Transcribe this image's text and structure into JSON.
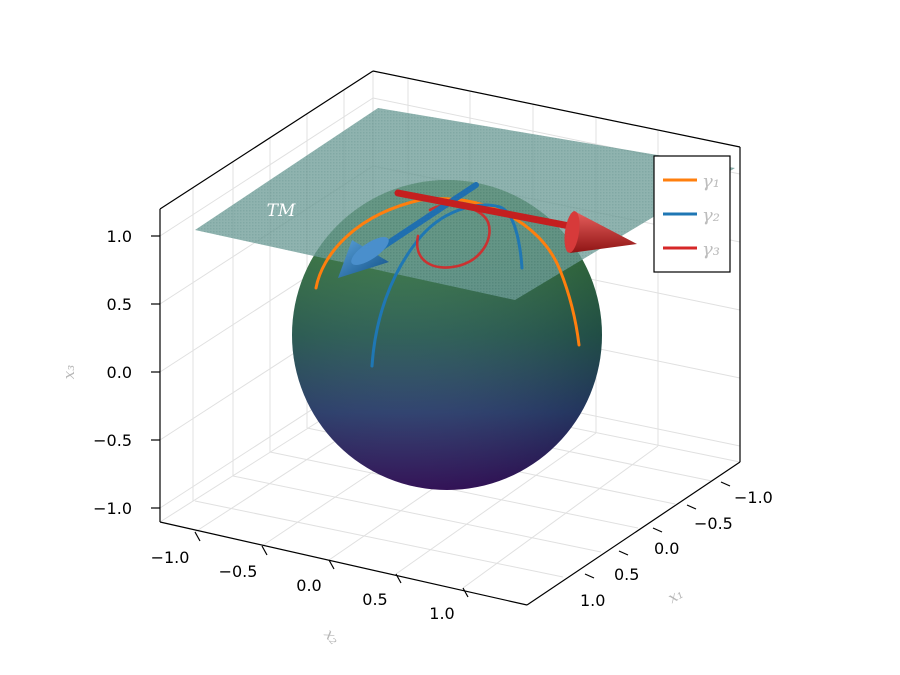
{
  "chart_data": {
    "type": "surface3d",
    "title": "",
    "axes": {
      "x1": {
        "label": "x₁",
        "ticks": [
          "−1.0",
          "−0.5",
          "0.0",
          "0.5",
          "1.0"
        ],
        "range": [
          -1.2,
          1.2
        ]
      },
      "x2": {
        "label": "x₂",
        "ticks": [
          "−1.0",
          "−0.5",
          "0.0",
          "0.5",
          "1.0"
        ],
        "range": [
          -1.2,
          1.2
        ]
      },
      "x3": {
        "label": "x₃",
        "ticks": [
          "−1.0",
          "−0.5",
          "0.0",
          "0.5",
          "1.0"
        ],
        "range": [
          -1.0,
          1.2
        ]
      }
    },
    "grid": true,
    "surfaces": [
      {
        "name": "sphere",
        "center": [
          0,
          0,
          0
        ],
        "radius": 1,
        "colormap": "viridis"
      },
      {
        "name": "tangent-plane",
        "label": "TM",
        "z": 1,
        "extent": [
          [
            -1.2,
            1.2
          ],
          [
            -1.2,
            1.2
          ]
        ],
        "color": "#4e8a8a"
      }
    ],
    "legend": {
      "position": "top-right",
      "entries": [
        {
          "label": "γ₁",
          "color": "#ff7f0e"
        },
        {
          "label": "γ₂",
          "color": "#1f77b4"
        },
        {
          "label": "γ₃",
          "color": "#d62728"
        }
      ]
    },
    "vectors": [
      {
        "name": "blue-arrow",
        "color": "#1f77b4"
      },
      {
        "name": "red-arrow",
        "color": "#d62728"
      }
    ]
  }
}
